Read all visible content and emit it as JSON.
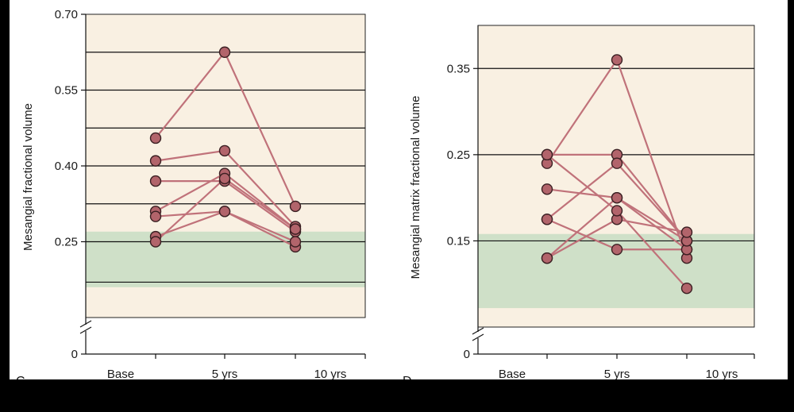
{
  "colors": {
    "page_background": "#000000",
    "panel_background": "#ffffff",
    "plot_background": "#f9f0e2",
    "normal_range_band": "#cfe0c8",
    "gridline": "#111111",
    "series_line": "#c0727a",
    "marker_fill": "#b2646b",
    "marker_edge": "#3a1f22"
  },
  "chart_data": [
    {
      "type": "line",
      "panel_label": "C",
      "ylabel": "Mesangial fractional volume",
      "categories": [
        "Base",
        "5 yrs",
        "10 yrs"
      ],
      "yticks": [
        "0",
        "0.25",
        "0.40",
        "0.55",
        "0.70"
      ],
      "ytick_values": [
        0,
        0.25,
        0.4,
        0.55,
        0.7
      ],
      "ylim": [
        0.1,
        0.7
      ],
      "axis_break": true,
      "gridlines": [
        0.17,
        0.25,
        0.325,
        0.4,
        0.475,
        0.55,
        0.625
      ],
      "normal_range": [
        0.16,
        0.27
      ],
      "series": [
        {
          "values": [
            0.455,
            0.625,
            0.32
          ]
        },
        {
          "values": [
            0.41,
            0.43,
            0.28
          ]
        },
        {
          "values": [
            0.37,
            0.37,
            0.27
          ]
        },
        {
          "values": [
            0.31,
            0.385,
            0.275
          ]
        },
        {
          "values": [
            0.3,
            0.31,
            0.24
          ]
        },
        {
          "values": [
            0.26,
            0.31,
            0.25
          ]
        },
        {
          "values": [
            0.25,
            0.375,
            0.275
          ]
        }
      ]
    },
    {
      "type": "line",
      "panel_label": "D",
      "ylabel": "Mesangial matrix fractional volume",
      "categories": [
        "Base",
        "5 yrs",
        "10 yrs"
      ],
      "yticks": [
        "0",
        "0.15",
        "0.25",
        "0.35"
      ],
      "ytick_values": [
        0,
        0.15,
        0.25,
        0.35
      ],
      "ylim": [
        0.05,
        0.4
      ],
      "axis_break": true,
      "gridlines": [
        0.15,
        0.25,
        0.35
      ],
      "normal_range": [
        0.072,
        0.158
      ],
      "series": [
        {
          "values": [
            0.24,
            0.36,
            0.13
          ]
        },
        {
          "values": [
            0.25,
            0.25,
            0.15
          ]
        },
        {
          "values": [
            0.21,
            0.2,
            0.14
          ]
        },
        {
          "values": [
            0.175,
            0.24,
            0.15
          ]
        },
        {
          "values": [
            0.175,
            0.14,
            0.14
          ]
        },
        {
          "values": [
            0.13,
            0.2,
            0.15
          ]
        },
        {
          "values": [
            0.13,
            0.175,
            0.16
          ]
        },
        {
          "values": [
            0.25,
            0.185,
            0.095
          ]
        }
      ]
    }
  ]
}
